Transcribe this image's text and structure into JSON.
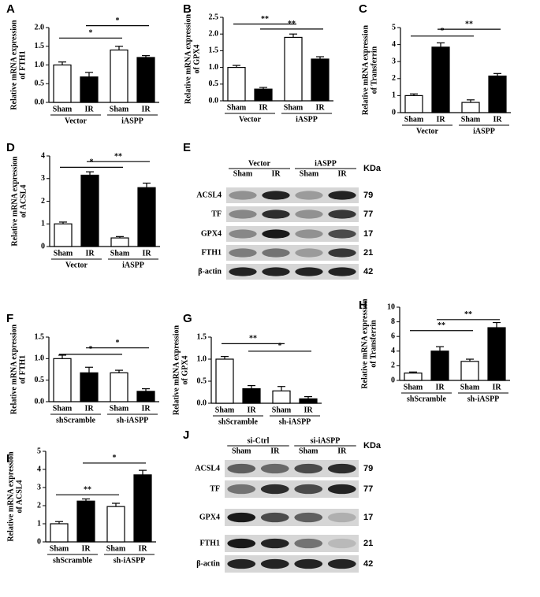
{
  "chart_data": [
    {
      "type": "bar",
      "panel": "A",
      "ylabel": [
        "Relative mRNA expression",
        "of FTH1"
      ],
      "categories": [
        "Sham",
        "IR",
        "Sham",
        "IR"
      ],
      "groups": [
        "Vector",
        "iASPP"
      ],
      "values": [
        1.0,
        0.68,
        1.4,
        1.2
      ],
      "errors": [
        0.08,
        0.12,
        0.1,
        0.05
      ],
      "colors": [
        "#ffffff",
        "#000000",
        "#ffffff",
        "#000000"
      ],
      "ylim": [
        0,
        2
      ],
      "yticks": [
        {
          "value": 0,
          "label": "0.0"
        },
        0.5,
        {
          "value": 1,
          "label": "1.0"
        },
        1.5,
        {
          "value": 2,
          "label": "2.0"
        }
      ],
      "annotations": [
        "*",
        "*"
      ]
    },
    {
      "type": "bar",
      "panel": "B",
      "ylabel": [
        "Relative mRNA expression",
        "of GPX4"
      ],
      "categories": [
        "Sham",
        "IR",
        "Sham",
        "IR"
      ],
      "groups": [
        "Vector",
        "iASPP"
      ],
      "values": [
        1.0,
        0.35,
        1.9,
        1.25
      ],
      "errors": [
        0.06,
        0.05,
        0.1,
        0.07
      ],
      "colors": [
        "#ffffff",
        "#000000",
        "#ffffff",
        "#000000"
      ],
      "ylim": [
        0,
        2.5
      ],
      "yticks": [
        {
          "value": 0,
          "label": "0.0"
        },
        0.5,
        {
          "value": 1,
          "label": "1.0"
        },
        1.5,
        {
          "value": 2,
          "label": "2.0"
        },
        2.5
      ],
      "annotations": [
        "**",
        "**"
      ]
    },
    {
      "type": "bar",
      "panel": "C",
      "ylabel": [
        "Relative mRNA expression",
        "of Transferrin"
      ],
      "categories": [
        "Sham",
        "IR",
        "Sham",
        "IR"
      ],
      "groups": [
        "Vector",
        "iASPP"
      ],
      "values": [
        1.0,
        3.85,
        0.6,
        2.15
      ],
      "errors": [
        0.1,
        0.25,
        0.15,
        0.15
      ],
      "colors": [
        "#ffffff",
        "#000000",
        "#ffffff",
        "#000000"
      ],
      "ylim": [
        0,
        5
      ],
      "yticks": [
        0,
        1,
        2,
        3,
        4,
        5
      ],
      "annotations": [
        "*",
        "**"
      ]
    },
    {
      "type": "bar",
      "panel": "D",
      "ylabel": [
        "Relative mRNA expression",
        "of ACSL4"
      ],
      "categories": [
        "Sham",
        "IR",
        "Sham",
        "IR"
      ],
      "groups": [
        "Vector",
        "iASPP"
      ],
      "values": [
        1.0,
        3.15,
        0.38,
        2.6
      ],
      "errors": [
        0.08,
        0.15,
        0.06,
        0.2
      ],
      "colors": [
        "#ffffff",
        "#000000",
        "#ffffff",
        "#000000"
      ],
      "ylim": [
        0,
        4
      ],
      "yticks": [
        0,
        1,
        2,
        3,
        4
      ],
      "annotations": [
        "*",
        "**"
      ]
    },
    {
      "type": "bar",
      "panel": "F",
      "ylabel": [
        "Relative mRNA expression",
        "of FTH1"
      ],
      "categories": [
        "Sham",
        "IR",
        "Sham",
        "IR"
      ],
      "groups": [
        "shScramble",
        "sh-iASPP"
      ],
      "values": [
        1.0,
        0.67,
        0.67,
        0.24
      ],
      "errors": [
        0.08,
        0.13,
        0.06,
        0.06
      ],
      "colors": [
        "#ffffff",
        "#000000",
        "#ffffff",
        "#000000"
      ],
      "ylim": [
        0,
        1.5
      ],
      "yticks": [
        {
          "value": 0,
          "label": "0.0"
        },
        0.5,
        {
          "value": 1,
          "label": "1.0"
        },
        1.5
      ],
      "annotations": [
        "*",
        "*"
      ]
    },
    {
      "type": "bar",
      "panel": "G",
      "ylabel": [
        "Relative mRNA expression",
        "of GPX4"
      ],
      "categories": [
        "Sham",
        "IR",
        "Sham",
        "IR"
      ],
      "groups": [
        "shScramble",
        "sh-iASPP"
      ],
      "values": [
        1.0,
        0.33,
        0.28,
        0.1
      ],
      "errors": [
        0.06,
        0.07,
        0.1,
        0.05
      ],
      "colors": [
        "#ffffff",
        "#000000",
        "#ffffff",
        "#000000"
      ],
      "ylim": [
        0,
        1.5
      ],
      "yticks": [
        {
          "value": 0,
          "label": "0.0"
        },
        0.5,
        {
          "value": 1,
          "label": "1.0"
        },
        1.5
      ],
      "annotations": [
        "**",
        "*"
      ]
    },
    {
      "type": "bar",
      "panel": "H",
      "ylabel": [
        "Relative mRNA expression",
        "of Transferrin"
      ],
      "categories": [
        "Sham",
        "IR",
        "Sham",
        "IR"
      ],
      "groups": [
        "shScramble",
        "sh-iASPP"
      ],
      "values": [
        1.0,
        4.0,
        2.6,
        7.2
      ],
      "errors": [
        0.15,
        0.6,
        0.3,
        0.7
      ],
      "colors": [
        "#ffffff",
        "#000000",
        "#ffffff",
        "#000000"
      ],
      "ylim": [
        0,
        10
      ],
      "yticks": [
        0,
        2,
        4,
        6,
        8,
        10
      ],
      "annotations": [
        "**",
        "**"
      ]
    },
    {
      "type": "bar",
      "panel": "I",
      "ylabel": [
        "Relative mRNA expression",
        "of ACSL4"
      ],
      "categories": [
        "Sham",
        "IR",
        "Sham",
        "IR"
      ],
      "groups": [
        "shScramble",
        "sh-iASPP"
      ],
      "values": [
        1.0,
        2.25,
        1.95,
        3.7
      ],
      "errors": [
        0.12,
        0.12,
        0.18,
        0.25
      ],
      "colors": [
        "#ffffff",
        "#000000",
        "#ffffff",
        "#000000"
      ],
      "ylim": [
        0,
        5
      ],
      "yticks": [
        0,
        1,
        2,
        3,
        4,
        5
      ],
      "annotations": [
        "**",
        "*"
      ]
    }
  ],
  "blots": [
    {
      "panel": "E",
      "groups": [
        "Vector",
        "iASPP"
      ],
      "lanes": [
        "Sham",
        "IR",
        "Sham",
        "IR"
      ],
      "unit": "KDa",
      "proteins": [
        {
          "name": "ACSL4",
          "kda": 79
        },
        {
          "name": "TF",
          "kda": 77
        },
        {
          "name": "GPX4",
          "kda": 17
        },
        {
          "name": "FTH1",
          "kda": 21
        },
        {
          "name": "β-actin",
          "kda": 42
        }
      ]
    },
    {
      "panel": "J",
      "groups": [
        "si-Ctrl",
        "si-iASPP"
      ],
      "lanes": [
        "Sham",
        "IR",
        "Sham",
        "IR"
      ],
      "unit": "KDa",
      "proteins": [
        {
          "name": "ACSL4",
          "kda": 79
        },
        {
          "name": "TF",
          "kda": 77
        },
        {
          "name": "GPX4",
          "kda": 17
        },
        {
          "name": "FTH1",
          "kda": 21
        },
        {
          "name": "β-actin",
          "kda": 42
        }
      ]
    }
  ]
}
